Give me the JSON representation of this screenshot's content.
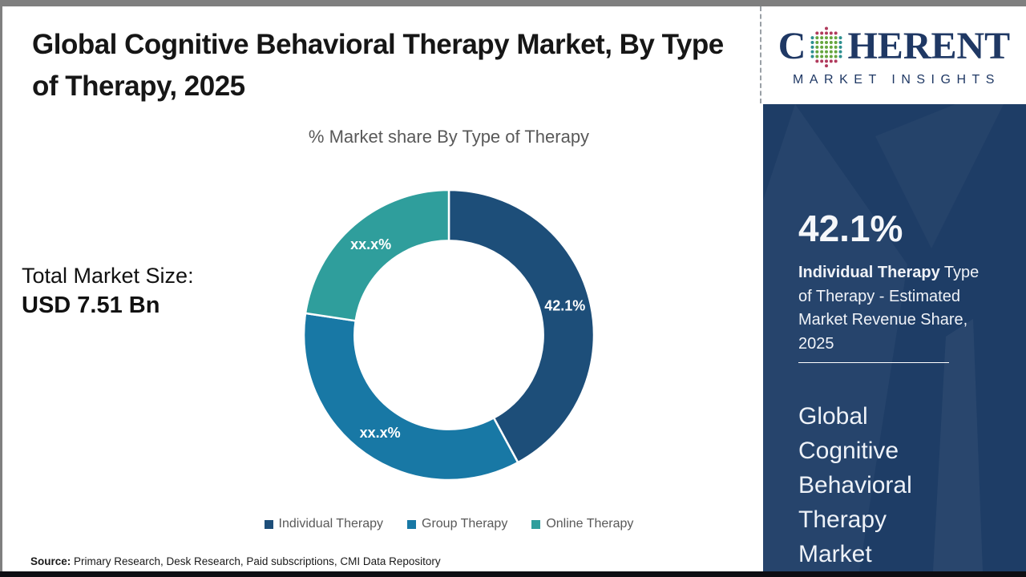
{
  "header": {
    "title": "Global Cognitive Behavioral Therapy Market, By Type of Therapy, 2025"
  },
  "logo": {
    "name_prefix": "C",
    "name_suffix": "HERENT",
    "tagline": "MARKET INSIGHTS",
    "brand_navy": "#1f3864",
    "globe_colors": {
      "poles": "#b03a5c",
      "sides": "#2e8f8f",
      "center": "#66a63f"
    }
  },
  "main": {
    "subtitle": "% Market share By Type of Therapy",
    "total_market_label": "Total Market Size:",
    "total_market_value": "USD 7.51 Bn",
    "source_label": "Source:",
    "source_text": " Primary Research, Desk Research, Paid subscriptions, CMI Data Repository"
  },
  "chart_data": {
    "type": "pie",
    "subtype": "donut",
    "title": "% Market share By Type of Therapy",
    "categories": [
      "Individual Therapy",
      "Group Therapy",
      "Online Therapy"
    ],
    "values": [
      42.1,
      35.3,
      22.6
    ],
    "slice_labels": [
      "42.1%",
      "xx.x%",
      "xx.x%"
    ],
    "colors": [
      "#1d4e79",
      "#1878a5",
      "#2f9e9c"
    ],
    "start_angle_deg": 0,
    "direction": "clockwise",
    "inner_radius_ratio": 0.65,
    "slice_label_color": "#ffffff",
    "legend_position": "bottom"
  },
  "sidebar": {
    "background": "#1e3d66",
    "stat_value": "42.1%",
    "stat_desc_bold": "Individual Therapy",
    "stat_desc_rest": " Type of Therapy - Estimated Market Revenue Share, 2025",
    "market_name": "Global Cognitive Behavioral Therapy Market"
  }
}
